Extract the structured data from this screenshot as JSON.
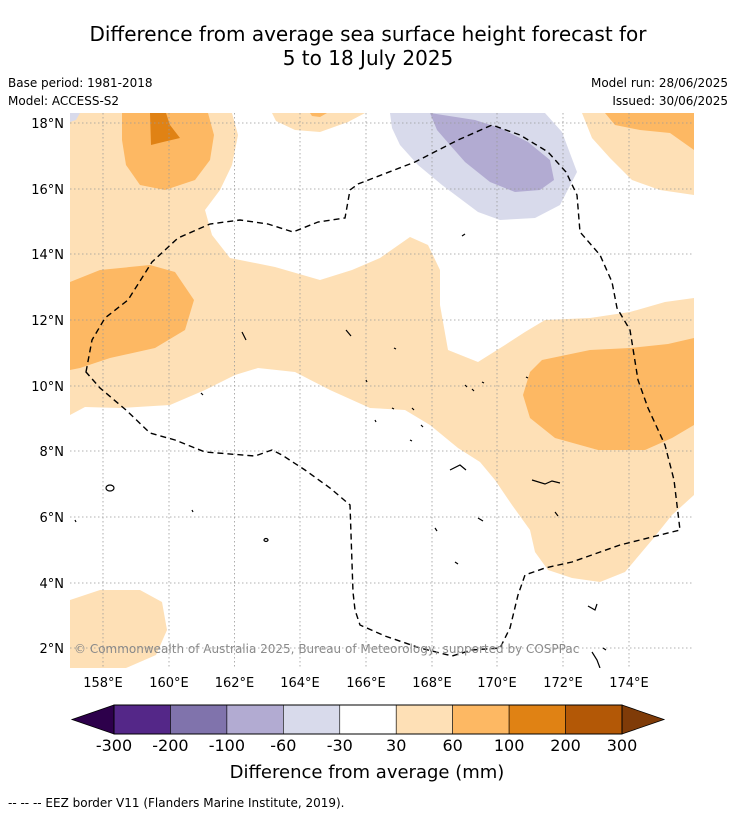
{
  "title_line1": "Difference from average sea surface height forecast for",
  "title_line2": "5 to 18 July 2025",
  "base_period": "Base period: 1981-2018",
  "model": "Model: ACCESS-S2",
  "model_run": "Model run: 28/06/2025",
  "issued": "Issued: 30/06/2025",
  "copyright": "© Commonwealth of Australia 2025, Bureau of Meteorology, supported by COSPPac",
  "footer": "--  --  -- EEZ border V11 (Flanders Marine Institute, 2019).",
  "lon_labels": [
    "158°E",
    "160°E",
    "162°E",
    "164°E",
    "166°E",
    "168°E",
    "170°E",
    "172°E",
    "174°E"
  ],
  "lat_labels": [
    "18°N",
    "16°N",
    "14°N",
    "12°N",
    "10°N",
    "8°N",
    "6°N",
    "4°N",
    "2°N"
  ],
  "colorbar": {
    "title": "Difference from average (mm)",
    "labels": [
      "-300",
      "-200",
      "-100",
      "-60",
      "-30",
      "30",
      "60",
      "100",
      "200",
      "300"
    ],
    "colors": [
      "#2d004b",
      "#542788",
      "#8073ac",
      "#b2abd2",
      "#d8daeb",
      "#ffffff",
      "#fee0b6",
      "#fdb863",
      "#e08214",
      "#b35806",
      "#7f3b08"
    ]
  }
}
